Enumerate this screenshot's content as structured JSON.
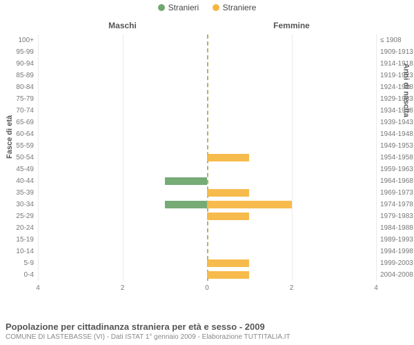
{
  "legend": {
    "male": {
      "label": "Stranieri",
      "color": "#6fa76f"
    },
    "female": {
      "label": "Straniere",
      "color": "#f5b742"
    }
  },
  "halves": {
    "left": "Maschi",
    "right": "Femmine"
  },
  "y_axis_left_title": "Fasce di età",
  "y_axis_right_title": "Anni di nascita",
  "x_axis": {
    "max": 4,
    "ticks": [
      4,
      2,
      0,
      2,
      4
    ],
    "grid_color": "#eaeaea"
  },
  "zero_line_color": "#b0a040",
  "background_color": "#ffffff",
  "bar_opacity": 0.95,
  "rows": [
    {
      "age": "100+",
      "birth": "≤ 1908",
      "male": 0,
      "female": 0
    },
    {
      "age": "95-99",
      "birth": "1909-1913",
      "male": 0,
      "female": 0
    },
    {
      "age": "90-94",
      "birth": "1914-1918",
      "male": 0,
      "female": 0
    },
    {
      "age": "85-89",
      "birth": "1919-1923",
      "male": 0,
      "female": 0
    },
    {
      "age": "80-84",
      "birth": "1924-1928",
      "male": 0,
      "female": 0
    },
    {
      "age": "75-79",
      "birth": "1929-1933",
      "male": 0,
      "female": 0
    },
    {
      "age": "70-74",
      "birth": "1934-1938",
      "male": 0,
      "female": 0
    },
    {
      "age": "65-69",
      "birth": "1939-1943",
      "male": 0,
      "female": 0
    },
    {
      "age": "60-64",
      "birth": "1944-1948",
      "male": 0,
      "female": 0
    },
    {
      "age": "55-59",
      "birth": "1949-1953",
      "male": 0,
      "female": 0
    },
    {
      "age": "50-54",
      "birth": "1954-1958",
      "male": 0,
      "female": 1
    },
    {
      "age": "45-49",
      "birth": "1959-1963",
      "male": 0,
      "female": 0
    },
    {
      "age": "40-44",
      "birth": "1964-1968",
      "male": 1,
      "female": 0
    },
    {
      "age": "35-39",
      "birth": "1969-1973",
      "male": 0,
      "female": 1
    },
    {
      "age": "30-34",
      "birth": "1974-1978",
      "male": 1,
      "female": 2
    },
    {
      "age": "25-29",
      "birth": "1979-1983",
      "male": 0,
      "female": 1
    },
    {
      "age": "20-24",
      "birth": "1984-1988",
      "male": 0,
      "female": 0
    },
    {
      "age": "15-19",
      "birth": "1989-1993",
      "male": 0,
      "female": 0
    },
    {
      "age": "10-14",
      "birth": "1994-1998",
      "male": 0,
      "female": 0
    },
    {
      "age": "5-9",
      "birth": "1999-2003",
      "male": 0,
      "female": 1
    },
    {
      "age": "0-4",
      "birth": "2004-2008",
      "male": 0,
      "female": 1
    }
  ],
  "footer": {
    "title": "Popolazione per cittadinanza straniera per età e sesso - 2009",
    "sub": "COMUNE DI LASTEBASSE (VI) - Dati ISTAT 1° gennaio 2009 - Elaborazione TUTTITALIA.IT"
  }
}
